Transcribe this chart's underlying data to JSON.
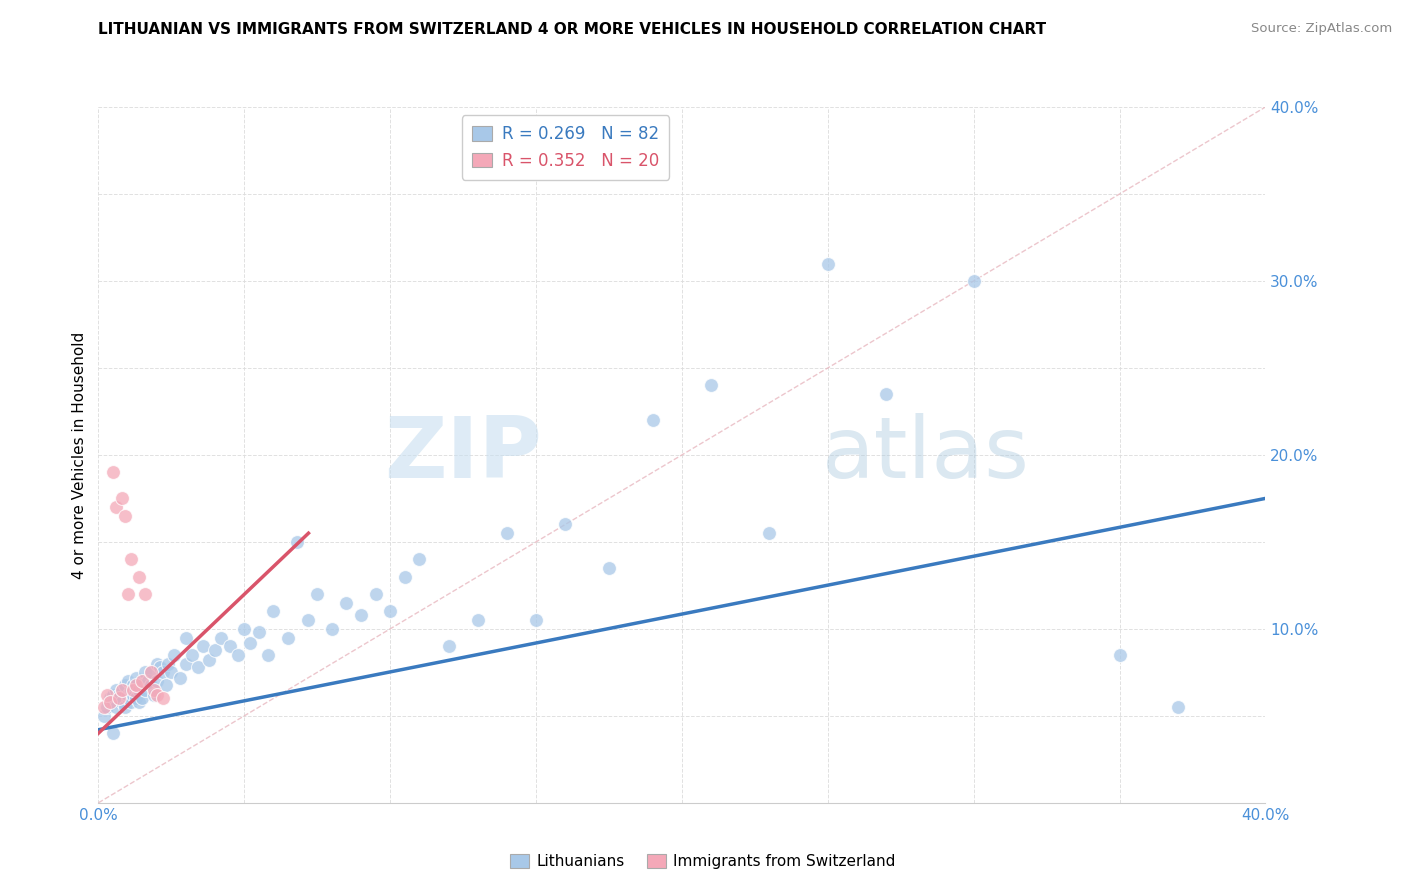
{
  "title": "LITHUANIAN VS IMMIGRANTS FROM SWITZERLAND 4 OR MORE VEHICLES IN HOUSEHOLD CORRELATION CHART",
  "source": "Source: ZipAtlas.com",
  "ylabel": "4 or more Vehicles in Household",
  "xlim": [
    0.0,
    0.4
  ],
  "ylim": [
    0.0,
    0.4
  ],
  "xticks": [
    0.0,
    0.05,
    0.1,
    0.15,
    0.2,
    0.25,
    0.3,
    0.35,
    0.4
  ],
  "yticks": [
    0.0,
    0.05,
    0.1,
    0.15,
    0.2,
    0.25,
    0.3,
    0.35,
    0.4
  ],
  "blue_R": 0.269,
  "blue_N": 82,
  "pink_R": 0.352,
  "pink_N": 20,
  "blue_color": "#a8c8e8",
  "pink_color": "#f4a8b8",
  "blue_line_color": "#3a7abf",
  "pink_line_color": "#d9546a",
  "watermark_zip": "ZIP",
  "watermark_atlas": "atlas",
  "legend_label_blue": "Lithuanians",
  "legend_label_pink": "Immigrants from Switzerland",
  "blue_scatter_x": [
    0.002,
    0.003,
    0.004,
    0.005,
    0.005,
    0.006,
    0.006,
    0.007,
    0.007,
    0.008,
    0.008,
    0.009,
    0.009,
    0.01,
    0.01,
    0.01,
    0.011,
    0.011,
    0.012,
    0.012,
    0.013,
    0.013,
    0.014,
    0.014,
    0.015,
    0.015,
    0.016,
    0.016,
    0.017,
    0.018,
    0.018,
    0.019,
    0.02,
    0.02,
    0.021,
    0.022,
    0.023,
    0.024,
    0.025,
    0.026,
    0.028,
    0.03,
    0.03,
    0.032,
    0.034,
    0.036,
    0.038,
    0.04,
    0.042,
    0.045,
    0.048,
    0.05,
    0.052,
    0.055,
    0.058,
    0.06,
    0.065,
    0.068,
    0.072,
    0.075,
    0.08,
    0.085,
    0.09,
    0.095,
    0.1,
    0.105,
    0.11,
    0.12,
    0.13,
    0.14,
    0.15,
    0.16,
    0.175,
    0.19,
    0.21,
    0.23,
    0.25,
    0.27,
    0.3,
    0.35,
    0.37,
    0.005
  ],
  "blue_scatter_y": [
    0.05,
    0.055,
    0.06,
    0.062,
    0.058,
    0.055,
    0.065,
    0.06,
    0.062,
    0.058,
    0.065,
    0.055,
    0.068,
    0.06,
    0.062,
    0.07,
    0.065,
    0.058,
    0.062,
    0.068,
    0.06,
    0.072,
    0.065,
    0.058,
    0.068,
    0.06,
    0.075,
    0.065,
    0.07,
    0.068,
    0.075,
    0.062,
    0.07,
    0.08,
    0.078,
    0.075,
    0.068,
    0.08,
    0.075,
    0.085,
    0.072,
    0.08,
    0.095,
    0.085,
    0.078,
    0.09,
    0.082,
    0.088,
    0.095,
    0.09,
    0.085,
    0.1,
    0.092,
    0.098,
    0.085,
    0.11,
    0.095,
    0.15,
    0.105,
    0.12,
    0.1,
    0.115,
    0.108,
    0.12,
    0.11,
    0.13,
    0.14,
    0.09,
    0.105,
    0.155,
    0.105,
    0.16,
    0.135,
    0.22,
    0.24,
    0.155,
    0.31,
    0.235,
    0.3,
    0.085,
    0.055,
    0.04
  ],
  "pink_scatter_x": [
    0.002,
    0.003,
    0.004,
    0.005,
    0.006,
    0.007,
    0.008,
    0.008,
    0.009,
    0.01,
    0.011,
    0.012,
    0.013,
    0.014,
    0.015,
    0.016,
    0.018,
    0.019,
    0.02,
    0.022
  ],
  "pink_scatter_y": [
    0.055,
    0.062,
    0.058,
    0.19,
    0.17,
    0.06,
    0.065,
    0.175,
    0.165,
    0.12,
    0.14,
    0.065,
    0.068,
    0.13,
    0.07,
    0.12,
    0.075,
    0.065,
    0.062,
    0.06
  ],
  "blue_trend_x": [
    0.0,
    0.4
  ],
  "blue_trend_y": [
    0.042,
    0.175
  ],
  "pink_trend_x": [
    0.0,
    0.072
  ],
  "pink_trend_y": [
    0.04,
    0.155
  ]
}
